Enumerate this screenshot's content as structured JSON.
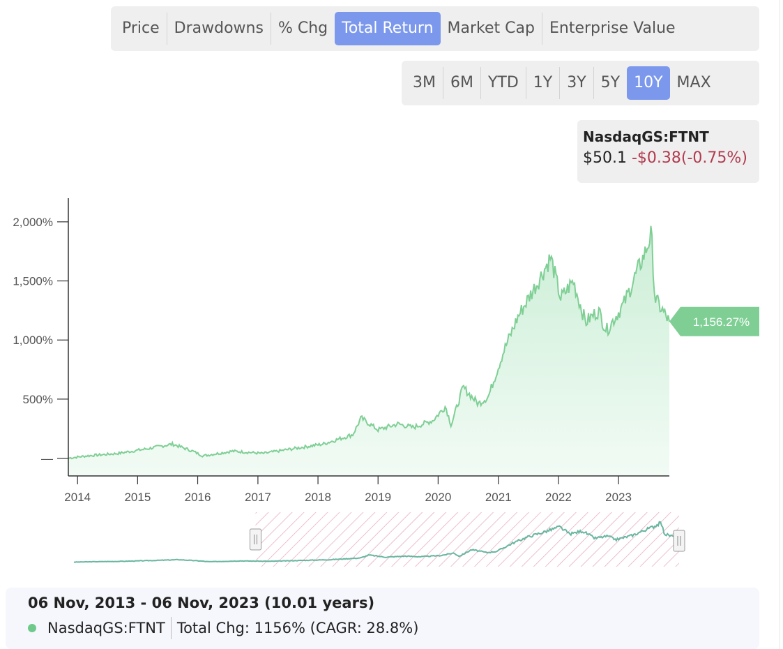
{
  "metric_tabs": {
    "items": [
      "Price",
      "Drawdowns",
      "% Chg",
      "Total Return",
      "Market Cap",
      "Enterprise Value"
    ],
    "active": 3
  },
  "range_tabs": {
    "items": [
      "3M",
      "6M",
      "YTD",
      "1Y",
      "3Y",
      "5Y",
      "10Y",
      "MAX"
    ],
    "active": 6
  },
  "ticker": {
    "symbol": "NasdaqGS:FTNT",
    "price": "$50.1",
    "change": "-$0.38(-0.75%)"
  },
  "summary": {
    "range": "06 Nov, 2013 - 06 Nov, 2023 (10.01 years)",
    "series_label": "NasdaqGS:FTNT",
    "stats": "Total Chg: 1156% (CAGR: 28.8%)"
  },
  "colors": {
    "line": "#7fcf95",
    "area_top": "#cbeed6",
    "area_bottom": "#f2fbf5",
    "label_bg": "#7fcf95",
    "active_tab": "#7b98ec",
    "negative": "#b23b4e",
    "navigator_hatch": "#e7a9bf",
    "navigator_line": "#68b6a0"
  },
  "chart_data": {
    "type": "area",
    "series": [
      {
        "name": "NasdaqGS:FTNT",
        "x": [
          "2013-11-06",
          "2014-03-01",
          "2014-09-01",
          "2015-03-01",
          "2015-08-01",
          "2015-12-01",
          "2016-02-01",
          "2016-08-01",
          "2017-02-01",
          "2017-08-01",
          "2018-02-01",
          "2018-08-01",
          "2018-09-20",
          "2019-01-01",
          "2019-05-01",
          "2019-08-01",
          "2019-12-01",
          "2020-02-15",
          "2020-03-20",
          "2020-06-01",
          "2020-09-01",
          "2020-11-01",
          "2021-02-01",
          "2021-05-01",
          "2021-09-01",
          "2021-11-15",
          "2022-01-15",
          "2022-04-01",
          "2022-06-15",
          "2022-09-01",
          "2022-10-20",
          "2023-02-01",
          "2023-04-01",
          "2023-06-15",
          "2023-07-20",
          "2023-08-10",
          "2023-11-06"
        ],
        "values": [
          0,
          20,
          40,
          80,
          120,
          60,
          20,
          60,
          40,
          80,
          120,
          200,
          340,
          240,
          290,
          260,
          320,
          440,
          280,
          600,
          460,
          520,
          900,
          1200,
          1500,
          1700,
          1350,
          1500,
          1150,
          1250,
          1080,
          1300,
          1500,
          1750,
          1900,
          1350,
          1156.27
        ]
      }
    ],
    "x_ticks": [
      "2014",
      "2015",
      "2016",
      "2017",
      "2018",
      "2019",
      "2020",
      "2021",
      "2022",
      "2023"
    ],
    "y_ticks": [
      "—",
      "500%",
      "1,000%",
      "1,500%",
      "2,000%"
    ],
    "y_tick_values": [
      0,
      500,
      1000,
      1500,
      2000
    ],
    "ylim": [
      -150,
      2200
    ],
    "last_value_label": "1,156.27%",
    "navigator": {
      "selected_from": "2016-11-06",
      "selected_to": "2023-11-06"
    }
  }
}
